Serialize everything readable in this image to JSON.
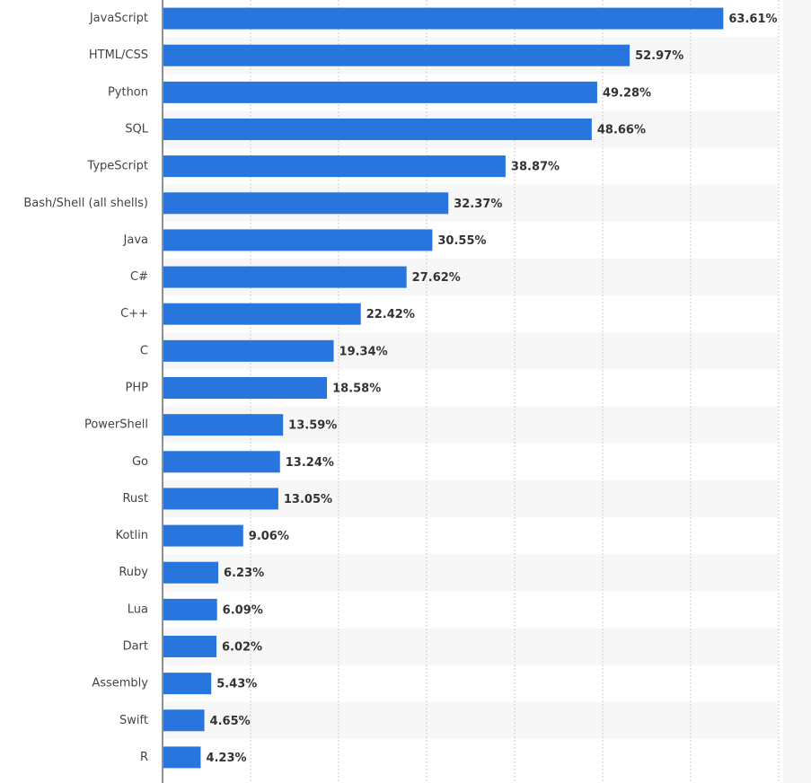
{
  "chart_data": {
    "type": "bar",
    "orientation": "horizontal",
    "categories": [
      "JavaScript",
      "HTML/CSS",
      "Python",
      "SQL",
      "TypeScript",
      "Bash/Shell (all shells)",
      "Java",
      "C#",
      "C++",
      "C",
      "PHP",
      "PowerShell",
      "Go",
      "Rust",
      "Kotlin",
      "Ruby",
      "Lua",
      "Dart",
      "Assembly",
      "Swift",
      "R"
    ],
    "values": [
      63.61,
      52.97,
      49.28,
      48.66,
      38.87,
      32.37,
      30.55,
      27.62,
      22.42,
      19.34,
      18.58,
      13.59,
      13.24,
      13.05,
      9.06,
      6.23,
      6.09,
      6.02,
      5.43,
      4.65,
      4.23
    ],
    "value_labels": [
      "63.61%",
      "52.97%",
      "49.28%",
      "48.66%",
      "38.87%",
      "32.37%",
      "30.55%",
      "27.62%",
      "22.42%",
      "19.34%",
      "18.58%",
      "13.59%",
      "13.24%",
      "13.05%",
      "9.06%",
      "6.23%",
      "6.09%",
      "6.02%",
      "5.43%",
      "4.65%",
      "4.23%"
    ],
    "color": "#2876dd",
    "xlim": [
      0,
      70
    ],
    "xticks": [
      0,
      10,
      20,
      30,
      40,
      50,
      60,
      70
    ],
    "grid": true
  }
}
